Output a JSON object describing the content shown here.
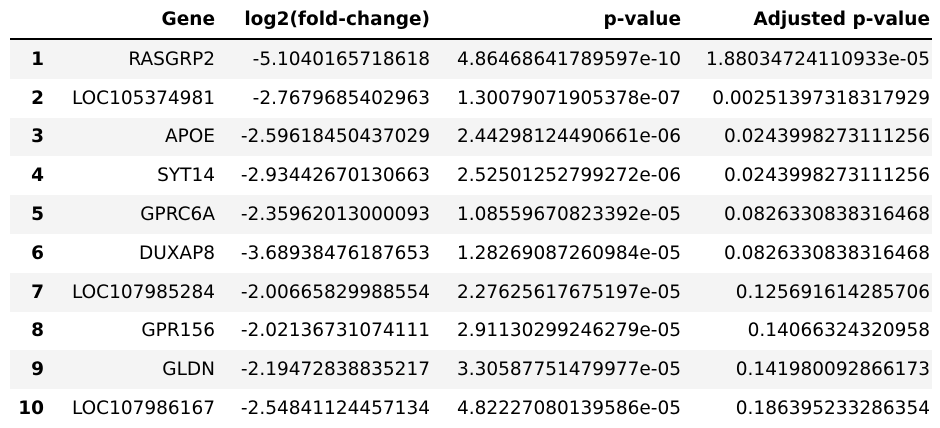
{
  "table": {
    "columns": [
      "",
      "Gene",
      "log2(fold-change)",
      "p-value",
      "Adjusted p-value"
    ],
    "rows": [
      {
        "index": "1",
        "gene": "RASGRP2",
        "lfc": "-5.1040165718618",
        "p": "4.86468641789597e-10",
        "adj": "1.88034724110933e-05"
      },
      {
        "index": "2",
        "gene": "LOC105374981",
        "lfc": "-2.7679685402963",
        "p": "1.30079071905378e-07",
        "adj": "0.00251397318317929"
      },
      {
        "index": "3",
        "gene": "APOE",
        "lfc": "-2.59618450437029",
        "p": "2.44298124490661e-06",
        "adj": "0.0243998273111256"
      },
      {
        "index": "4",
        "gene": "SYT14",
        "lfc": "-2.93442670130663",
        "p": "2.52501252799272e-06",
        "adj": "0.0243998273111256"
      },
      {
        "index": "5",
        "gene": "GPRC6A",
        "lfc": "-2.35962013000093",
        "p": "1.08559670823392e-05",
        "adj": "0.0826330838316468"
      },
      {
        "index": "6",
        "gene": "DUXAP8",
        "lfc": "-3.68938476187653",
        "p": "1.28269087260984e-05",
        "adj": "0.0826330838316468"
      },
      {
        "index": "7",
        "gene": "LOC107985284",
        "lfc": "-2.00665829988554",
        "p": "2.27625617675197e-05",
        "adj": "0.125691614285706"
      },
      {
        "index": "8",
        "gene": "GPR156",
        "lfc": "-2.02136731074111",
        "p": "2.91130299246279e-05",
        "adj": "0.14066324320958"
      },
      {
        "index": "9",
        "gene": "GLDN",
        "lfc": "-2.19472838835217",
        "p": "3.30587751479977e-05",
        "adj": "0.141980092866173"
      },
      {
        "index": "10",
        "gene": "LOC107986167",
        "lfc": "-2.54841124457134",
        "p": "4.82227080139586e-05",
        "adj": "0.186395233286354"
      }
    ]
  }
}
